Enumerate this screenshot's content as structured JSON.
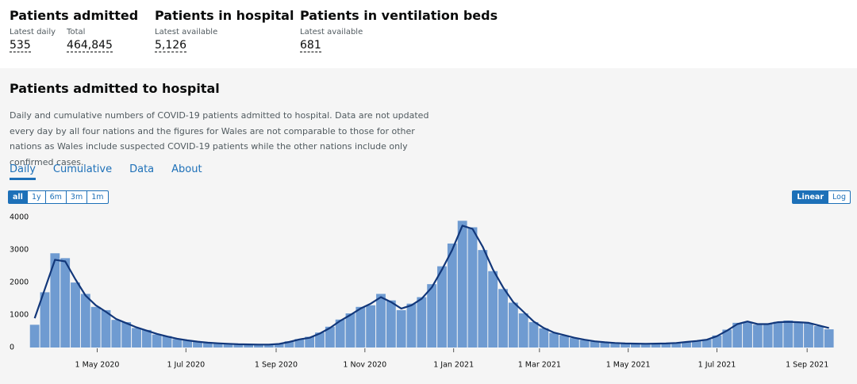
{
  "header": {
    "cards": [
      {
        "title": "Patients admitted",
        "metrics": [
          {
            "label": "Latest daily",
            "value": "535"
          },
          {
            "label": "Total",
            "value": "464,845"
          }
        ]
      },
      {
        "title": "Patients in hospital",
        "metrics": [
          {
            "label": "Latest available",
            "value": "5,126"
          }
        ]
      },
      {
        "title": "Patients in ventilation beds",
        "metrics": [
          {
            "label": "Latest available",
            "value": "681"
          }
        ]
      }
    ]
  },
  "section": {
    "title": "Patients admitted to hospital",
    "description": "Daily and cumulative numbers of COVID-19 patients admitted to hospital. Data are not updated every day by all four nations and the figures for Wales are not comparable to those for other nations as Wales include suspected COVID-19 patients while the other nations include only confirmed cases.",
    "tabs": [
      "Daily",
      "Cumulative",
      "Data",
      "About"
    ],
    "range_buttons": [
      "all",
      "1y",
      "6m",
      "3m",
      "1m"
    ],
    "scale_buttons": [
      "Linear",
      "Log"
    ]
  },
  "chart_data": {
    "type": "bar",
    "x": [
      "2020-03-19",
      "2020-03-26",
      "2020-04-02",
      "2020-04-09",
      "2020-04-16",
      "2020-04-23",
      "2020-04-30",
      "2020-05-07",
      "2020-05-14",
      "2020-05-21",
      "2020-05-28",
      "2020-06-04",
      "2020-06-11",
      "2020-06-18",
      "2020-06-25",
      "2020-07-02",
      "2020-07-09",
      "2020-07-16",
      "2020-07-23",
      "2020-07-30",
      "2020-08-06",
      "2020-08-13",
      "2020-08-20",
      "2020-08-27",
      "2020-09-03",
      "2020-09-10",
      "2020-09-17",
      "2020-09-24",
      "2020-10-01",
      "2020-10-08",
      "2020-10-15",
      "2020-10-22",
      "2020-10-29",
      "2020-11-05",
      "2020-11-12",
      "2020-11-19",
      "2020-11-26",
      "2020-12-03",
      "2020-12-10",
      "2020-12-17",
      "2020-12-24",
      "2020-12-31",
      "2021-01-07",
      "2021-01-14",
      "2021-01-21",
      "2021-01-28",
      "2021-02-04",
      "2021-02-11",
      "2021-02-18",
      "2021-02-25",
      "2021-03-04",
      "2021-03-11",
      "2021-03-18",
      "2021-03-25",
      "2021-04-01",
      "2021-04-08",
      "2021-04-15",
      "2021-04-22",
      "2021-04-29",
      "2021-05-06",
      "2021-05-13",
      "2021-05-20",
      "2021-05-27",
      "2021-06-03",
      "2021-06-10",
      "2021-06-17",
      "2021-06-24",
      "2021-07-01",
      "2021-07-08",
      "2021-07-15",
      "2021-07-22",
      "2021-07-29",
      "2021-08-05",
      "2021-08-12",
      "2021-08-19",
      "2021-08-26",
      "2021-09-02",
      "2021-09-09",
      "2021-09-16"
    ],
    "series": [
      {
        "type": "bar",
        "color": "#6f9bd1",
        "values": [
          700,
          1700,
          2900,
          2750,
          2000,
          1650,
          1250,
          1150,
          850,
          780,
          600,
          540,
          400,
          350,
          260,
          230,
          170,
          150,
          125,
          110,
          95,
          90,
          85,
          95,
          120,
          190,
          260,
          330,
          460,
          640,
          860,
          1050,
          1250,
          1300,
          1650,
          1450,
          1150,
          1350,
          1550,
          1950,
          2500,
          3200,
          3900,
          3700,
          3000,
          2350,
          1800,
          1380,
          1050,
          780,
          590,
          450,
          370,
          290,
          230,
          185,
          155,
          135,
          120,
          118,
          110,
          125,
          120,
          140,
          175,
          205,
          250,
          370,
          550,
          760,
          790,
          700,
          740,
          790,
          830,
          770,
          750,
          660,
          560
        ]
      },
      {
        "type": "line",
        "color": "#12377a",
        "values": [
          900,
          1800,
          2700,
          2650,
          2100,
          1600,
          1300,
          1100,
          880,
          750,
          620,
          520,
          420,
          340,
          270,
          220,
          180,
          150,
          130,
          115,
          100,
          95,
          90,
          90,
          110,
          170,
          250,
          300,
          430,
          600,
          820,
          1000,
          1200,
          1350,
          1550,
          1400,
          1200,
          1300,
          1500,
          1850,
          2400,
          3000,
          3750,
          3650,
          3100,
          2400,
          1850,
          1400,
          1100,
          800,
          600,
          460,
          380,
          300,
          240,
          190,
          160,
          140,
          125,
          120,
          115,
          120,
          125,
          140,
          170,
          200,
          240,
          350,
          520,
          720,
          800,
          720,
          720,
          780,
          790,
          780,
          760,
          680,
          600
        ]
      }
    ],
    "xlim": [
      "2020-03-17",
      "2021-09-26"
    ],
    "xticks": [
      {
        "value": "2020-05-01",
        "label": "1 May 2020"
      },
      {
        "value": "2020-07-01",
        "label": "1 Jul 2020"
      },
      {
        "value": "2020-09-01",
        "label": "1 Sep 2020"
      },
      {
        "value": "2020-11-01",
        "label": "1 Nov 2020"
      },
      {
        "value": "2021-01-01",
        "label": "1 Jan 2021"
      },
      {
        "value": "2021-03-01",
        "label": "1 Mar 2021"
      },
      {
        "value": "2021-05-01",
        "label": "1 May 2021"
      },
      {
        "value": "2021-07-01",
        "label": "1 Jul 2021"
      },
      {
        "value": "2021-09-01",
        "label": "1 Sep 2021"
      }
    ],
    "ylim": [
      0,
      4200
    ],
    "yticks": [
      0,
      1000,
      2000,
      3000,
      4000
    ],
    "grid": false
  }
}
